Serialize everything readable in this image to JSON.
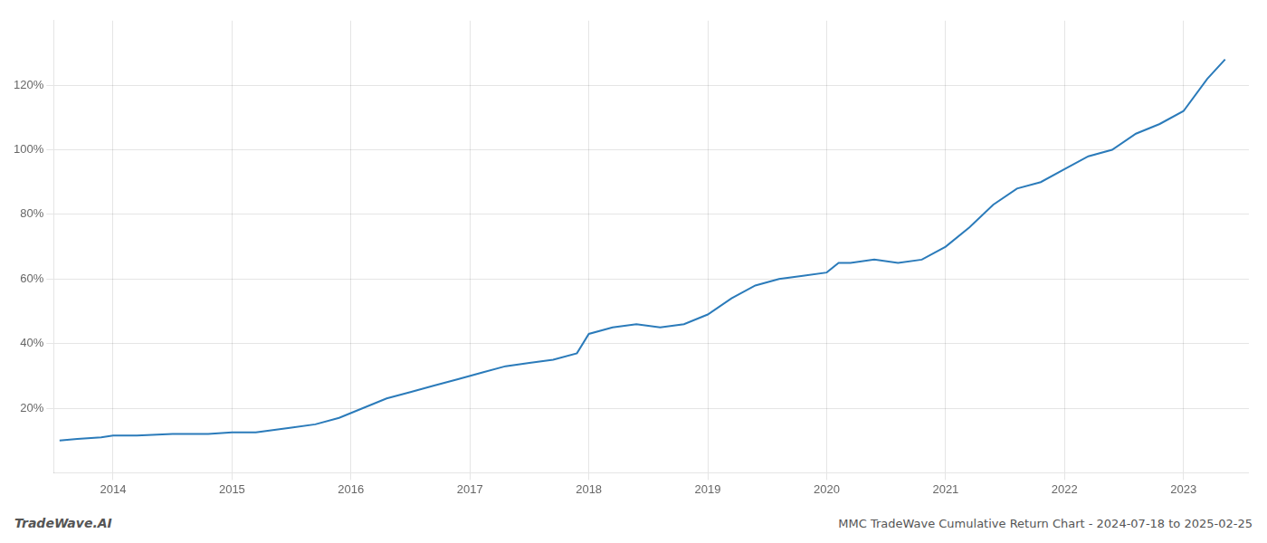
{
  "chart_data": {
    "type": "line",
    "title": "MMC TradeWave Cumulative Return Chart - 2024-07-18 to 2025-02-25",
    "annotations": [
      "TradeWave.AI"
    ],
    "color": "#2b7bba",
    "x": [
      2013.55,
      2013.7,
      2013.9,
      2014.0,
      2014.2,
      2014.5,
      2014.8,
      2015.0,
      2015.1,
      2015.2,
      2015.3,
      2015.5,
      2015.7,
      2015.9,
      2016.1,
      2016.3,
      2016.5,
      2016.7,
      2016.9,
      2017.1,
      2017.3,
      2017.5,
      2017.7,
      2017.9,
      2018.0,
      2018.2,
      2018.4,
      2018.6,
      2018.8,
      2019.0,
      2019.2,
      2019.4,
      2019.6,
      2019.8,
      2020.0,
      2020.1,
      2020.2,
      2020.4,
      2020.6,
      2020.8,
      2021.0,
      2021.2,
      2021.4,
      2021.6,
      2021.8,
      2022.0,
      2022.2,
      2022.4,
      2022.6,
      2022.8,
      2023.0,
      2023.2,
      2023.35
    ],
    "values": [
      10,
      10.5,
      11,
      11.5,
      11.5,
      12,
      12,
      12.5,
      12.5,
      12.5,
      13,
      14,
      15,
      17,
      20,
      23,
      25,
      27,
      29,
      31,
      33,
      34,
      35,
      37,
      43,
      45,
      46,
      45,
      46,
      49,
      54,
      58,
      60,
      61,
      62,
      65,
      65,
      66,
      65,
      66,
      70,
      76,
      83,
      88,
      90,
      94,
      98,
      100,
      105,
      108,
      112,
      122,
      128
    ],
    "xlim": [
      2013.5,
      2023.55
    ],
    "ylim": [
      0,
      140
    ],
    "xticks": [
      2014,
      2015,
      2016,
      2017,
      2018,
      2019,
      2020,
      2021,
      2022,
      2023
    ],
    "yticks": [
      {
        "value": 20,
        "label": "20%"
      },
      {
        "value": 40,
        "label": "40%"
      },
      {
        "value": 60,
        "label": "60%"
      },
      {
        "value": 80,
        "label": "80%"
      },
      {
        "value": 100,
        "label": "100%"
      },
      {
        "value": 120,
        "label": "120%"
      }
    ],
    "grid": true
  }
}
